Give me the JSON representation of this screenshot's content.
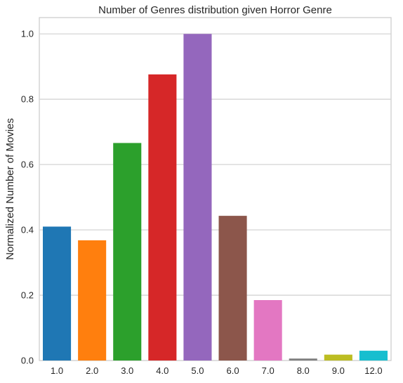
{
  "chart_data": {
    "type": "bar",
    "title": "Number of Genres distribution given Horror Genre",
    "xlabel": "",
    "ylabel": "Normalized Number of Movies",
    "categories": [
      "1.0",
      "2.0",
      "3.0",
      "4.0",
      "5.0",
      "6.0",
      "7.0",
      "8.0",
      "9.0",
      "12.0"
    ],
    "values": [
      0.41,
      0.368,
      0.666,
      0.876,
      1.0,
      0.443,
      0.185,
      0.006,
      0.018,
      0.03
    ],
    "colors": [
      "#1f77b4",
      "#ff7f0e",
      "#2ca02c",
      "#d62728",
      "#9467bd",
      "#8c564b",
      "#e377c2",
      "#7f7f7f",
      "#bcbd22",
      "#17becf"
    ],
    "ylim": [
      0,
      1.05
    ],
    "yticks": [
      "0.0",
      "0.2",
      "0.4",
      "0.6",
      "0.8",
      "1.0"
    ],
    "grid": true,
    "grid_axis": "y",
    "legend": "none"
  }
}
